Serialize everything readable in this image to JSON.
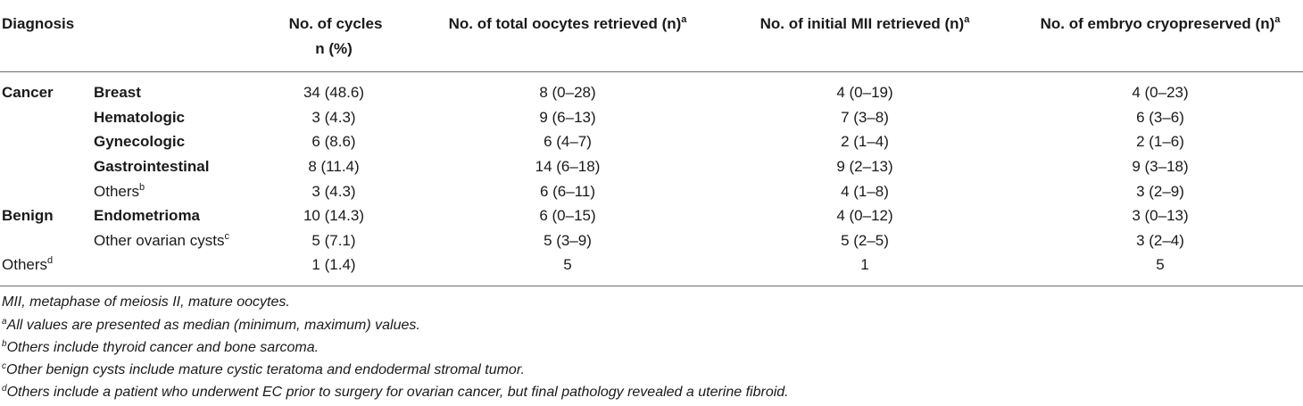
{
  "header": {
    "diagnosis": "Diagnosis",
    "cycles_line1": "No. of cycles",
    "cycles_line2": "n (%)",
    "oocytes": "No. of total oocytes retrieved (n)",
    "oocytes_sup": "a",
    "mii": "No. of initial MII retrieved (n)",
    "mii_sup": "a",
    "embryo": "No. of embryo cryopreserved (n)",
    "embryo_sup": "a"
  },
  "rows": [
    {
      "group": "Cancer",
      "sub": "Breast",
      "sub_sup": "",
      "cycles": "34 (48.6)",
      "oocytes": "8 (0–28)",
      "mii": "4 (0–19)",
      "embryo": "4 (0–23)"
    },
    {
      "group": "",
      "sub": "Hematologic",
      "sub_sup": "",
      "cycles": "3 (4.3)",
      "oocytes": "9 (6–13)",
      "mii": "7 (3–8)",
      "embryo": "6 (3–6)"
    },
    {
      "group": "",
      "sub": "Gynecologic",
      "sub_sup": "",
      "cycles": "6 (8.6)",
      "oocytes": "6 (4–7)",
      "mii": "2 (1–4)",
      "embryo": "2 (1–6)"
    },
    {
      "group": "",
      "sub": "Gastrointestinal",
      "sub_sup": "",
      "cycles": "8 (11.4)",
      "oocytes": "14 (6–18)",
      "mii": "9 (2–13)",
      "embryo": "9 (3–18)"
    },
    {
      "group": "",
      "sub": "Others",
      "sub_sup": "b",
      "cycles": "3 (4.3)",
      "oocytes": "6 (6–11)",
      "mii": "4 (1–8)",
      "embryo": "3 (2–9)"
    },
    {
      "group": "Benign",
      "sub": "Endometrioma",
      "sub_sup": "",
      "cycles": "10 (14.3)",
      "oocytes": "6 (0–15)",
      "mii": "4 (0–12)",
      "embryo": "3 (0–13)"
    },
    {
      "group": "",
      "sub": "Other ovarian cysts",
      "sub_sup": "c",
      "cycles": "5 (7.1)",
      "oocytes": "5 (3–9)",
      "mii": "5 (2–5)",
      "embryo": "3 (2–4)"
    },
    {
      "group": "Others",
      "group_sup": "d",
      "sub": "",
      "sub_sup": "",
      "cycles": "1 (1.4)",
      "oocytes": "5",
      "mii": "1",
      "embryo": "5"
    }
  ],
  "footnotes": {
    "abbrev": "MII, metaphase of meiosis II, mature oocytes.",
    "a_mark": "a",
    "a_text": "All values are presented as median (minimum, maximum) values.",
    "b_mark": "b",
    "b_text": "Others include thyroid cancer and bone sarcoma.",
    "c_mark": "c",
    "c_text": "Other benign cysts include mature cystic teratoma and endodermal stromal tumor.",
    "d_mark": "d",
    "d_text": "Others include a patient who underwent EC prior to surgery for ovarian cancer, but final pathology revealed a uterine fibroid."
  }
}
